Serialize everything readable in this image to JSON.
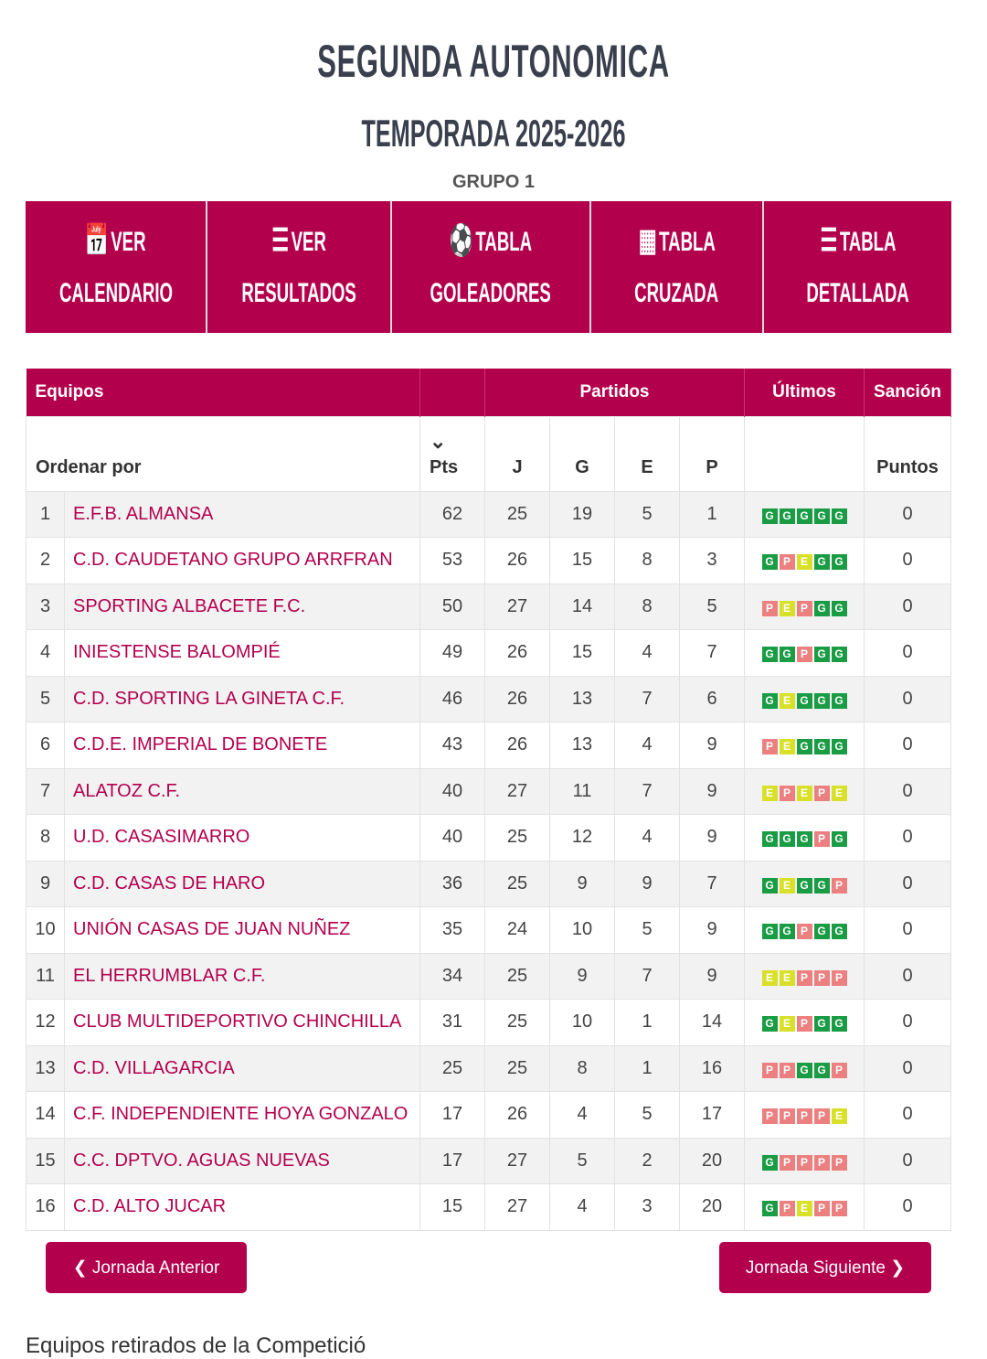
{
  "header": {
    "title": "SEGUNDA AUTONOMICA",
    "season": "TEMPORADA 2025-2026",
    "group": "GRUPO 1"
  },
  "nav": [
    {
      "icon": "calendar-icon",
      "glyph": "📅",
      "l1": "VER",
      "l2": "CALENDARIO"
    },
    {
      "icon": "list-icon",
      "glyph": "☰",
      "l1": "VER",
      "l2": "RESULTADOS"
    },
    {
      "icon": "soccer-ball-icon",
      "glyph": "⚽",
      "l1": "TABLA",
      "l2": "GOLEADORES"
    },
    {
      "icon": "calculator-icon",
      "glyph": "▦",
      "l1": "TABLA",
      "l2": "CRUZADA"
    },
    {
      "icon": "indent-list-icon",
      "glyph": "☰",
      "l1": "TABLA",
      "l2": "DETALLADA"
    }
  ],
  "table": {
    "h_teams": "Equipos",
    "h_matches": "Partidos",
    "h_last": "Últimos",
    "h_sanction": "Sanción",
    "sort_by": "Ordenar por",
    "sort_icon": "⌄",
    "cols": [
      "Pts",
      "J",
      "G",
      "E",
      "P",
      "Puntos"
    ],
    "rows": [
      {
        "pos": "1",
        "team": "E.F.B. ALMANSA",
        "pts": "62",
        "j": "25",
        "g": "19",
        "e": "5",
        "p": "1",
        "last": [
          "G",
          "G",
          "G",
          "G",
          "G"
        ],
        "san": "0"
      },
      {
        "pos": "2",
        "team": "C.D. CAUDETANO GRUPO ARRFRAN",
        "pts": "53",
        "j": "26",
        "g": "15",
        "e": "8",
        "p": "3",
        "last": [
          "G",
          "P",
          "E",
          "G",
          "G"
        ],
        "san": "0"
      },
      {
        "pos": "3",
        "team": "SPORTING ALBACETE F.C.",
        "pts": "50",
        "j": "27",
        "g": "14",
        "e": "8",
        "p": "5",
        "last": [
          "P",
          "E",
          "P",
          "G",
          "G"
        ],
        "san": "0"
      },
      {
        "pos": "4",
        "team": "INIESTENSE BALOMPIÉ",
        "pts": "49",
        "j": "26",
        "g": "15",
        "e": "4",
        "p": "7",
        "last": [
          "G",
          "G",
          "P",
          "G",
          "G"
        ],
        "san": "0"
      },
      {
        "pos": "5",
        "team": "C.D. SPORTING LA GINETA C.F.",
        "pts": "46",
        "j": "26",
        "g": "13",
        "e": "7",
        "p": "6",
        "last": [
          "G",
          "E",
          "G",
          "G",
          "G"
        ],
        "san": "0"
      },
      {
        "pos": "6",
        "team": "C.D.E. IMPERIAL DE BONETE",
        "pts": "43",
        "j": "26",
        "g": "13",
        "e": "4",
        "p": "9",
        "last": [
          "P",
          "E",
          "G",
          "G",
          "G"
        ],
        "san": "0"
      },
      {
        "pos": "7",
        "team": "ALATOZ C.F.",
        "pts": "40",
        "j": "27",
        "g": "11",
        "e": "7",
        "p": "9",
        "last": [
          "E",
          "P",
          "E",
          "P",
          "E"
        ],
        "san": "0"
      },
      {
        "pos": "8",
        "team": "U.D. CASASIMARRO",
        "pts": "40",
        "j": "25",
        "g": "12",
        "e": "4",
        "p": "9",
        "last": [
          "G",
          "G",
          "G",
          "P",
          "G"
        ],
        "san": "0"
      },
      {
        "pos": "9",
        "team": "C.D. CASAS DE HARO",
        "pts": "36",
        "j": "25",
        "g": "9",
        "e": "9",
        "p": "7",
        "last": [
          "G",
          "E",
          "G",
          "G",
          "P"
        ],
        "san": "0"
      },
      {
        "pos": "10",
        "team": "UNIÓN CASAS DE JUAN NUÑEZ",
        "pts": "35",
        "j": "24",
        "g": "10",
        "e": "5",
        "p": "9",
        "last": [
          "G",
          "G",
          "P",
          "G",
          "G"
        ],
        "san": "0"
      },
      {
        "pos": "11",
        "team": "EL HERRUMBLAR C.F.",
        "pts": "34",
        "j": "25",
        "g": "9",
        "e": "7",
        "p": "9",
        "last": [
          "E",
          "E",
          "P",
          "P",
          "P"
        ],
        "san": "0"
      },
      {
        "pos": "12",
        "team": "CLUB MULTIDEPORTIVO CHINCHILLA",
        "pts": "31",
        "j": "25",
        "g": "10",
        "e": "1",
        "p": "14",
        "last": [
          "G",
          "E",
          "P",
          "G",
          "G"
        ],
        "san": "0"
      },
      {
        "pos": "13",
        "team": "C.D. VILLAGARCIA",
        "pts": "25",
        "j": "25",
        "g": "8",
        "e": "1",
        "p": "16",
        "last": [
          "P",
          "P",
          "G",
          "G",
          "P"
        ],
        "san": "0"
      },
      {
        "pos": "14",
        "team": "C.F. INDEPENDIENTE HOYA GONZALO",
        "pts": "17",
        "j": "26",
        "g": "4",
        "e": "5",
        "p": "17",
        "last": [
          "P",
          "P",
          "P",
          "P",
          "E"
        ],
        "san": "0"
      },
      {
        "pos": "15",
        "team": "C.C. DPTVO. AGUAS NUEVAS",
        "pts": "17",
        "j": "27",
        "g": "5",
        "e": "2",
        "p": "20",
        "last": [
          "G",
          "P",
          "P",
          "P",
          "P"
        ],
        "san": "0"
      },
      {
        "pos": "16",
        "team": "C.D. ALTO JUCAR",
        "pts": "15",
        "j": "27",
        "g": "4",
        "e": "3",
        "p": "20",
        "last": [
          "G",
          "P",
          "E",
          "P",
          "P"
        ],
        "san": "0"
      }
    ]
  },
  "pager": {
    "prev": "❮ Jornada Anterior",
    "next": "Jornada Siguiente ❯"
  },
  "footer": {
    "retired": "Equipos retirados de la Competició"
  }
}
